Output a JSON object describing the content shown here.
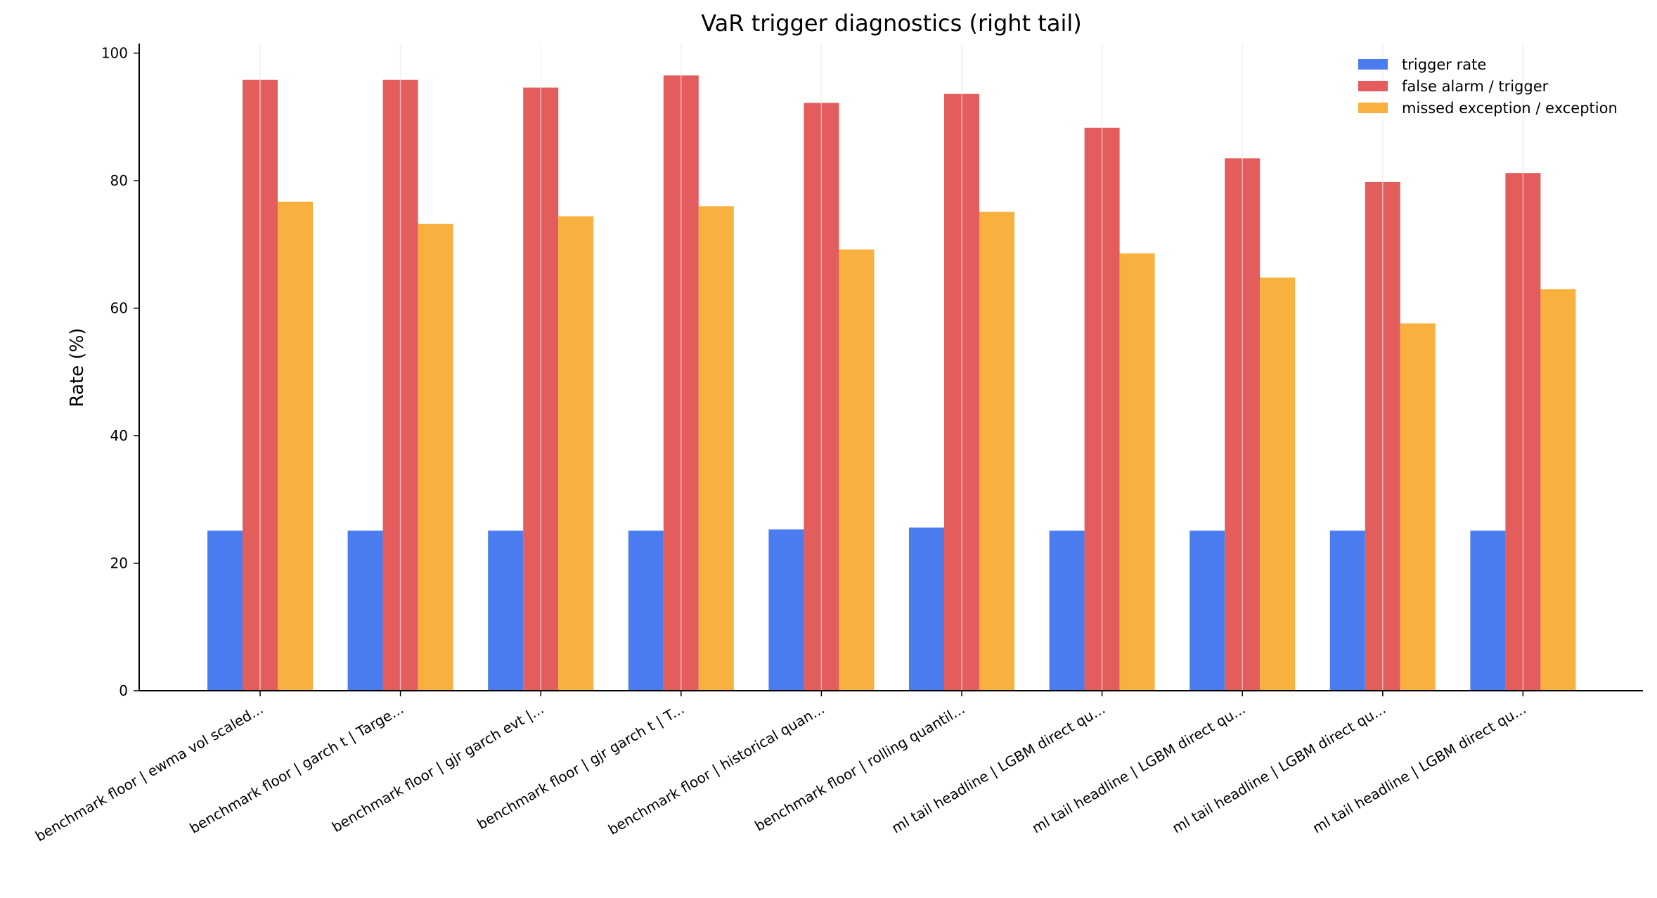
{
  "chart_data": {
    "type": "bar",
    "title": "VaR trigger diagnostics (right tail)",
    "xlabel": "",
    "ylabel": "Rate (%)",
    "ylim": [
      0,
      101.5
    ],
    "yticks": [
      0,
      20,
      40,
      60,
      80,
      100
    ],
    "grid": "vertical",
    "legend_position": "top-right",
    "categories": [
      "benchmark floor | ewma vol scaled...",
      "benchmark floor | garch t | Targe...",
      "benchmark floor | gjr garch evt |...",
      "benchmark floor | gjr garch t | T...",
      "benchmark floor | historical quan...",
      "benchmark floor | rolling quantil...",
      "ml tail headline | LGBM direct qu...",
      "ml tail headline | LGBM direct qu...",
      "ml tail headline | LGBM direct qu...",
      "ml tail headline | LGBM direct qu..."
    ],
    "series": [
      {
        "name": "trigger rate",
        "color": "#4a7cf0",
        "values": [
          25.1,
          25.1,
          25.1,
          25.1,
          25.3,
          25.6,
          25.1,
          25.1,
          25.1,
          25.1
        ]
      },
      {
        "name": "false alarm / trigger",
        "color": "#e35d5d",
        "values": [
          95.8,
          95.8,
          94.6,
          96.5,
          92.2,
          93.6,
          88.3,
          83.5,
          79.8,
          81.2
        ]
      },
      {
        "name": "missed exception / exception",
        "color": "#f8b03e",
        "values": [
          76.7,
          73.2,
          74.4,
          76.0,
          69.2,
          75.1,
          68.6,
          64.8,
          57.6,
          63.0
        ]
      }
    ]
  }
}
